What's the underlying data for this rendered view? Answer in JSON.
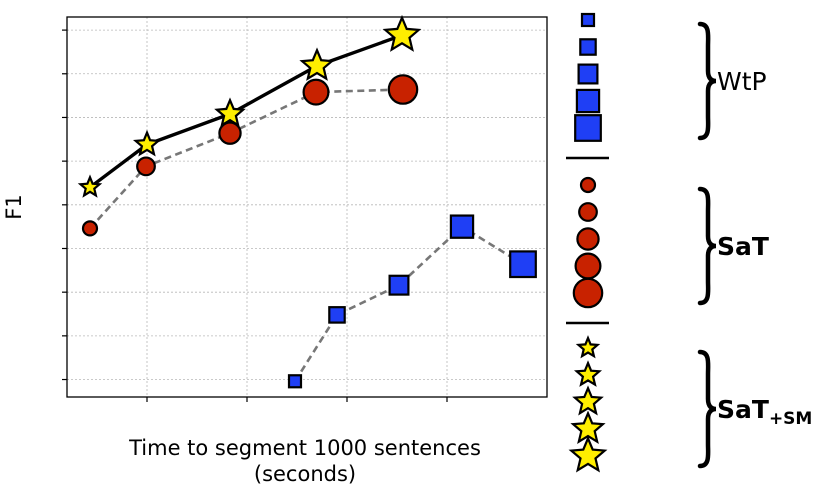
{
  "chart_data": {
    "type": "scatter",
    "xlabel": "Time to segment 1000 sentences",
    "xlabel_line2": "(seconds)",
    "ylabel": "F1",
    "xlim": [
      0.2,
      5.0
    ],
    "ylim": [
      13,
      56.5
    ],
    "xticks": [
      "1",
      "2",
      "3",
      "4"
    ],
    "yticks": [
      "15",
      "20",
      "25",
      "30",
      "35",
      "40",
      "45",
      "50",
      "55"
    ],
    "grid": true,
    "series": [
      {
        "name": "WtP",
        "marker": "square",
        "line": "dashed",
        "color": "#1f3ff5",
        "x": [
          2.48,
          2.9,
          3.52,
          4.15,
          4.76
        ],
        "y": [
          14.8,
          22.4,
          25.8,
          32.5,
          28.2
        ]
      },
      {
        "name": "SaT",
        "marker": "circle",
        "line": "dashed",
        "color": "#c82200",
        "x": [
          0.43,
          0.99,
          1.83,
          2.69,
          3.56
        ],
        "y": [
          32.3,
          39.4,
          43.2,
          47.9,
          48.2
        ]
      },
      {
        "name": "SaT+SM",
        "marker": "star",
        "line": "solid",
        "color": "#ffee00",
        "x": [
          0.43,
          1.0,
          1.83,
          2.7,
          3.55
        ],
        "y": [
          37.0,
          41.9,
          45.4,
          50.9,
          54.4
        ]
      }
    ],
    "legend": {
      "placement": "right",
      "sizes": [
        "1L",
        "3L",
        "6L",
        "9L",
        "12L"
      ],
      "groups": [
        {
          "label": "WtP",
          "bold": false,
          "marker": "square"
        },
        {
          "label": "SaT",
          "bold": true,
          "marker": "circle"
        },
        {
          "label": "SaT",
          "subscript": "+SM",
          "bold": true,
          "marker": "star"
        }
      ]
    }
  }
}
